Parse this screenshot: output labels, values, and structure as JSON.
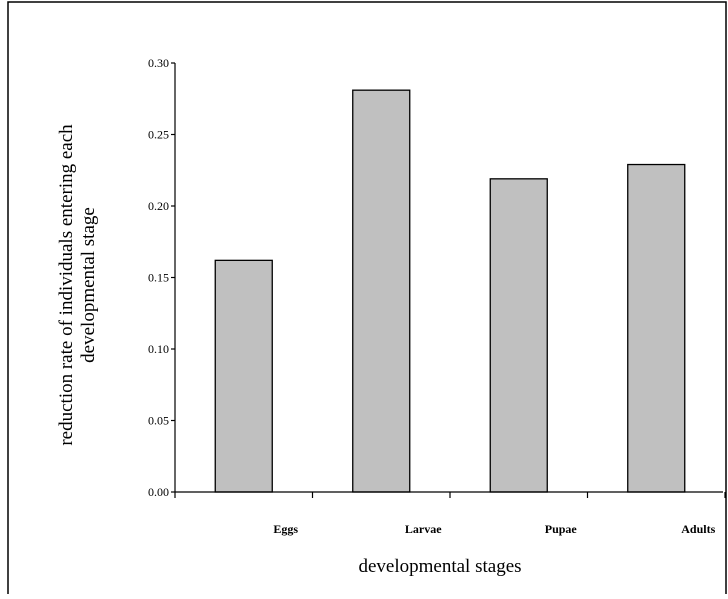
{
  "chart_data": {
    "type": "bar",
    "categories": [
      "Eggs",
      "Larvae",
      "Pupae",
      "Adults"
    ],
    "values": [
      0.162,
      0.281,
      0.219,
      0.229
    ],
    "title": "",
    "xlabel": "developmental stages",
    "ylabel_lines": [
      "reduction rate of individuals entering each",
      "developmental stage"
    ],
    "ylim": [
      0,
      0.3
    ],
    "yticks": [
      "0.00",
      "0.05",
      "0.10",
      "0.15",
      "0.20",
      "0.25",
      "0.30"
    ],
    "grid": false,
    "legend": "none",
    "colors": {
      "bar_fill": "#c0c0c0",
      "bar_stroke": "#000000",
      "axis": "#000000",
      "frame": "#000000"
    }
  }
}
